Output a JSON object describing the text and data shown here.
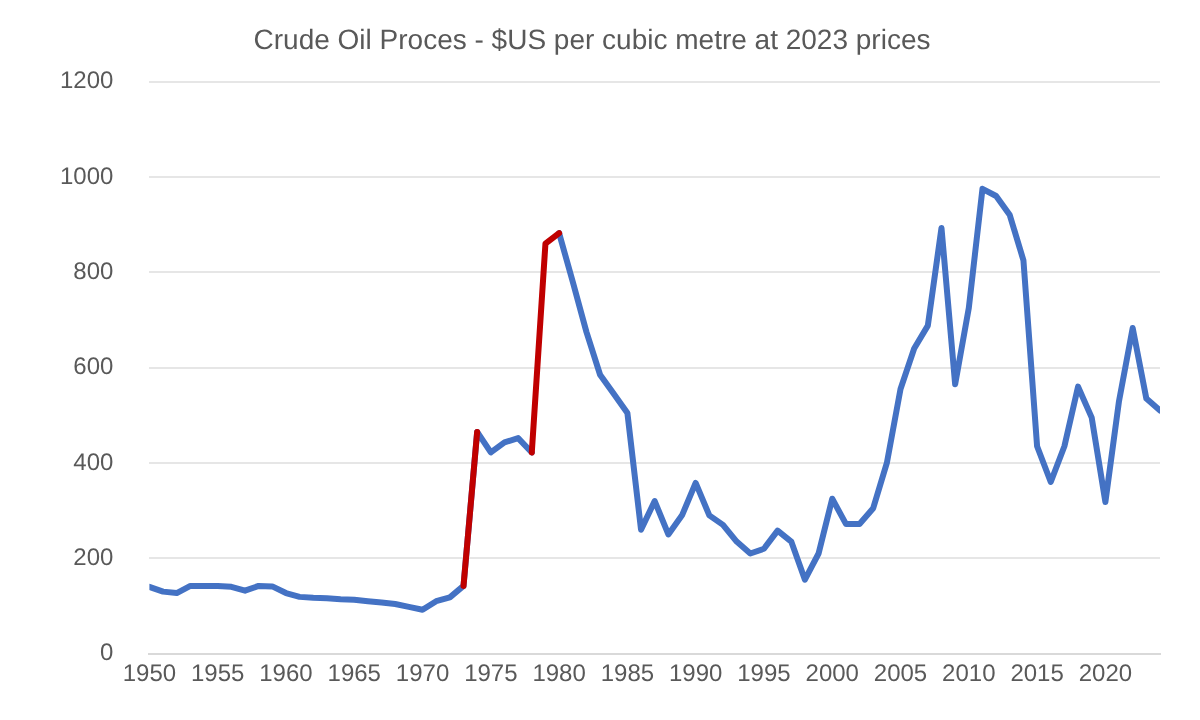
{
  "chart_data": {
    "type": "line",
    "title": "Crude Oil Proces - $US per cubic metre at 2023 prices",
    "x": [
      1950,
      1951,
      1952,
      1953,
      1954,
      1955,
      1956,
      1957,
      1958,
      1959,
      1960,
      1961,
      1962,
      1963,
      1964,
      1965,
      1966,
      1967,
      1968,
      1969,
      1970,
      1971,
      1972,
      1973,
      1974,
      1975,
      1976,
      1977,
      1978,
      1979,
      1980,
      1981,
      1982,
      1983,
      1984,
      1985,
      1986,
      1987,
      1988,
      1989,
      1990,
      1991,
      1992,
      1993,
      1994,
      1995,
      1996,
      1997,
      1998,
      1999,
      2000,
      2001,
      2002,
      2003,
      2004,
      2005,
      2006,
      2007,
      2008,
      2009,
      2010,
      2011,
      2012,
      2013,
      2014,
      2015,
      2016,
      2017,
      2018,
      2019,
      2020,
      2021,
      2022,
      2023,
      2024
    ],
    "series": [
      {
        "color": "#4472c4",
        "values": [
          140,
          130,
          127,
          142,
          142,
          142,
          140,
          132,
          142,
          141,
          127,
          119,
          117,
          116,
          114,
          113,
          110,
          107,
          104,
          98,
          92,
          110,
          118,
          142,
          465,
          422,
          443,
          452,
          422,
          null,
          882,
          780,
          675,
          585,
          545,
          505,
          260,
          320,
          250,
          290,
          358,
          290,
          270,
          235,
          210,
          220,
          258,
          235,
          155,
          210,
          325,
          272,
          272,
          305,
          400,
          555,
          640,
          688,
          893,
          565,
          725,
          975,
          960,
          920,
          825,
          435,
          360,
          435,
          560,
          495,
          318,
          530,
          683,
          535,
          510
        ]
      },
      {
        "color": "#c00000",
        "values": [
          null,
          null,
          null,
          null,
          null,
          null,
          null,
          null,
          null,
          null,
          null,
          null,
          null,
          null,
          null,
          null,
          null,
          null,
          null,
          null,
          null,
          null,
          null,
          142,
          465,
          null,
          null,
          null,
          422,
          860,
          882,
          null,
          null,
          null,
          null,
          null,
          null,
          null,
          null,
          null,
          null,
          null,
          null,
          null,
          null,
          null,
          null,
          null,
          null,
          null,
          null,
          null,
          null,
          null,
          null,
          null,
          null,
          null,
          null,
          null,
          null,
          null,
          null,
          null,
          null,
          null,
          null,
          null,
          null,
          null,
          null,
          null,
          null,
          null,
          null
        ]
      }
    ],
    "xlim": [
      1950,
      2024
    ],
    "xticks": [
      1950,
      1955,
      1960,
      1965,
      1970,
      1975,
      1980,
      1985,
      1990,
      1995,
      2000,
      2005,
      2010,
      2015,
      2020
    ],
    "ylim": [
      0,
      1200
    ],
    "yticks": [
      0,
      200,
      400,
      600,
      800,
      1000,
      1200
    ],
    "grid": "y",
    "legend": false,
    "marker": "none",
    "line_style": "solid"
  }
}
